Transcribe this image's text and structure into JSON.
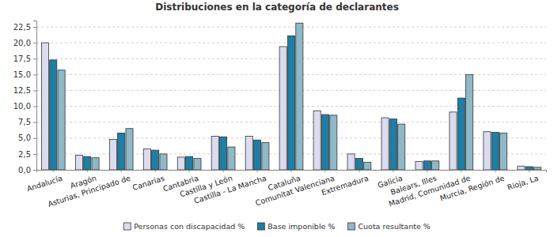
{
  "chart_data": {
    "type": "bar",
    "title": "Distribuciones en la categoría de declarantes",
    "categories": [
      "Andalucía",
      "Aragón",
      "Asturias, Principado de",
      "Canarias",
      "Cantabria",
      "Castilla y León",
      "Castilla - La Mancha",
      "Cataluña",
      "Comunitat Valenciana",
      "Extremadura",
      "Galicia",
      "Balears, Illes",
      "Madrid, Comunidad de",
      "Murcia, Región de",
      "Rioja, La"
    ],
    "series": [
      {
        "name": "Personas con discapacidad %",
        "color": "#dcdcf0",
        "values": [
          20.0,
          2.3,
          4.8,
          3.3,
          2.0,
          5.3,
          5.3,
          19.4,
          9.3,
          2.5,
          8.2,
          1.3,
          9.1,
          6.0,
          0.6
        ]
      },
      {
        "name": "Base imponible %",
        "color": "#1f7ea3",
        "values": [
          17.3,
          2.1,
          5.8,
          3.1,
          2.1,
          5.2,
          4.7,
          21.1,
          8.7,
          1.8,
          8.0,
          1.4,
          11.3,
          5.9,
          0.5
        ]
      },
      {
        "name": "Cuota resultante %",
        "color": "#8fb8c8",
        "values": [
          15.7,
          1.9,
          6.5,
          2.5,
          1.8,
          3.6,
          4.3,
          23.1,
          8.6,
          1.2,
          7.2,
          1.4,
          15.0,
          5.8,
          0.4
        ]
      }
    ],
    "ylim": [
      0,
      23.5
    ],
    "yticks": [
      {
        "value": 0,
        "label": "0,0"
      },
      {
        "value": 2.5,
        "label": "2,5"
      },
      {
        "value": 5,
        "label": "5,0"
      },
      {
        "value": 7.5,
        "label": "7,5"
      },
      {
        "value": 10,
        "label": "10,0"
      },
      {
        "value": 12.5,
        "label": "12,5"
      },
      {
        "value": 15,
        "label": "15,0"
      },
      {
        "value": 17.5,
        "label": "17,5"
      },
      {
        "value": 20,
        "label": "20,0"
      },
      {
        "value": 22.5,
        "label": "22,5"
      }
    ],
    "grid": true,
    "legend": "bottom"
  }
}
